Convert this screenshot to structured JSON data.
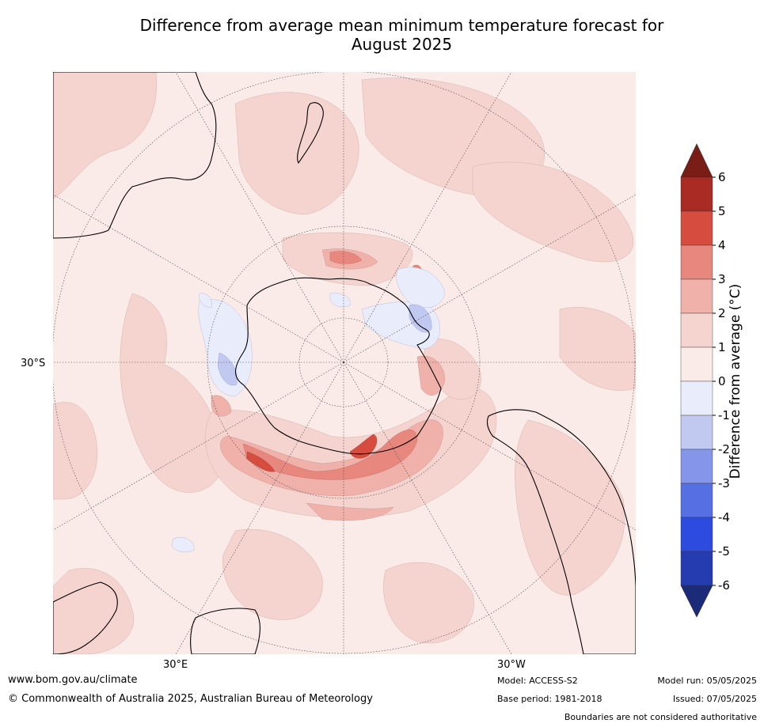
{
  "title_line1": "Difference from average mean minimum temperature forecast for",
  "title_line2": "August 2025",
  "axis_labels": {
    "lat_30s": "30°S",
    "lon_30e": "30°E",
    "lon_30w": "30°W"
  },
  "colorbar": {
    "label": "Difference from average (°C)",
    "ticks": [
      "6",
      "5",
      "4",
      "3",
      "2",
      "1",
      "0",
      "-1",
      "-2",
      "-3",
      "-4",
      "-5",
      "-6"
    ],
    "colors": [
      "#7a1d16",
      "#a92b23",
      "#d64d3f",
      "#e8877e",
      "#efb1aa",
      "#f5d4d0",
      "#fbebe8",
      "#e8ecfb",
      "#c1c9f1",
      "#8596ea",
      "#5670e3",
      "#2e4be0",
      "#253bb0",
      "#1c2a7a"
    ]
  },
  "footer": {
    "website": "www.bom.gov.au/climate",
    "copyright": "© Commonwealth of Australia 2025, Australian Bureau of Meteorology",
    "model": "Model: ACCESS-S2",
    "base_period": "Base period: 1981-2018",
    "model_run": "Model run: 05/05/2025",
    "issued": "Issued: 07/05/2025",
    "boundaries": "Boundaries are not considered authoritative"
  }
}
